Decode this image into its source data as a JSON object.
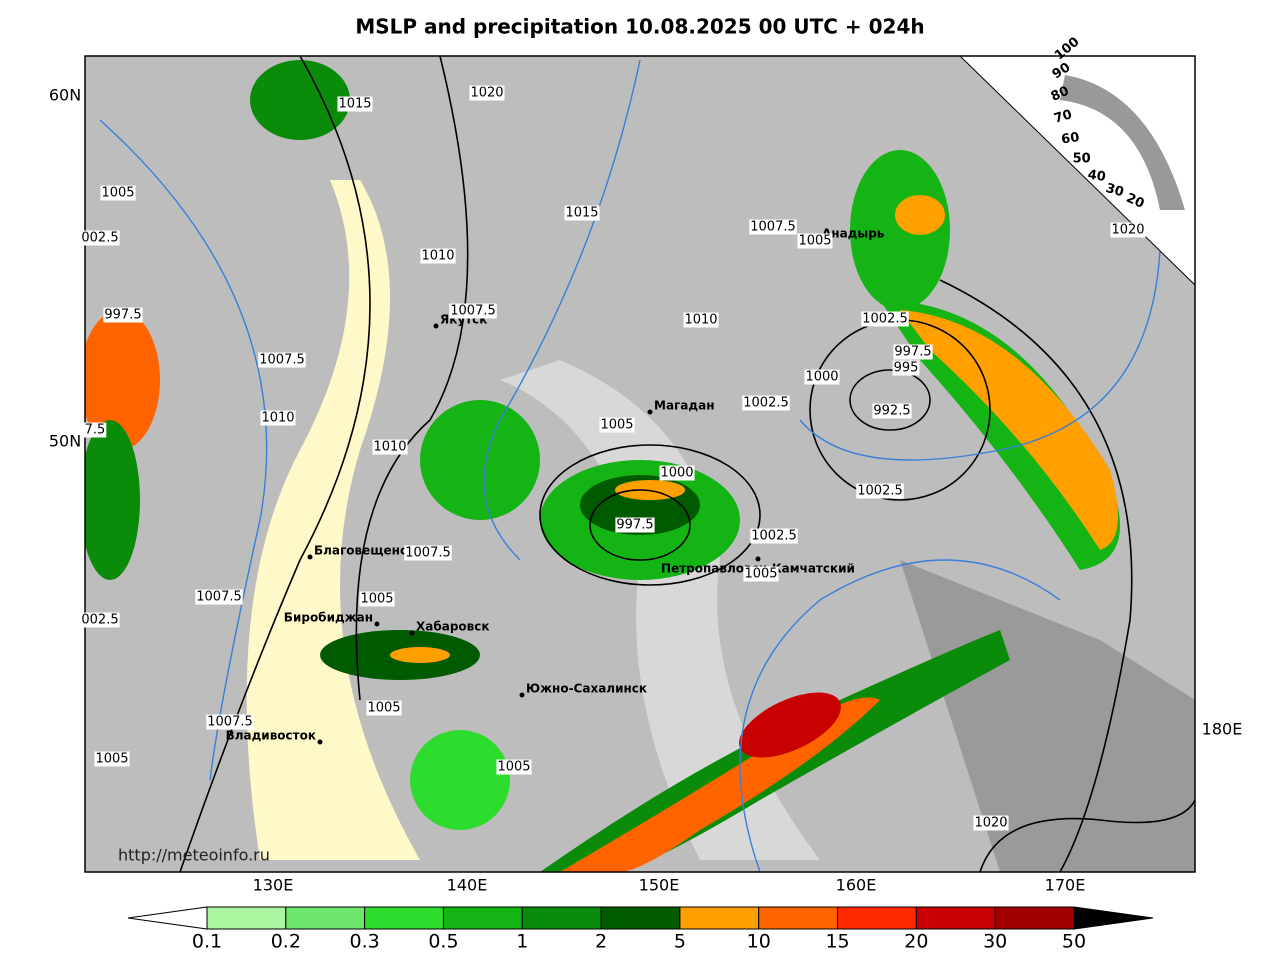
{
  "title": "MSLP and precipitation 10.08.2025 00 UTC + 024h",
  "lat_labels": [
    "60N",
    "50N"
  ],
  "lon_labels": [
    "130E",
    "140E",
    "150E",
    "160E",
    "170E",
    "180E"
  ],
  "cities": [
    "Якутск",
    "Магадан",
    "Благовещенск",
    "Биробиджан",
    "Хабаровск",
    "Южно-Сахалинск",
    "Владивосток",
    "Петропавловск-Камчатский",
    "Анадырь"
  ],
  "pressure_labels": [
    "1015",
    "1020",
    "1005",
    "002.5",
    "997.5",
    "1007.5",
    "1010",
    "1010",
    "1007.5",
    "1005",
    "1007.5",
    "1007.5",
    "1005",
    "1005",
    "1005",
    "1015",
    "1010",
    "1007.5",
    "1007.5",
    "1005",
    "1010",
    "1002.5",
    "997.5",
    "995",
    "992.5",
    "1000",
    "1002.5",
    "1005",
    "1000",
    "997.5",
    "1002.5",
    "1002.5",
    "1005",
    "1020",
    "1020",
    "7.5",
    "002.5"
  ],
  "cloud_scale": [
    "100",
    "90",
    "80",
    "70",
    "60",
    "50",
    "40",
    "30",
    "20"
  ],
  "source": "http://meteoinfo.ru",
  "colorbar": {
    "ticks": [
      0.1,
      0.2,
      0.3,
      0.5,
      1,
      2,
      5,
      10,
      15,
      20,
      30,
      50
    ],
    "colors": [
      "#aaf5a0",
      "#6ee66e",
      "#2edc2e",
      "#14b414",
      "#0a8c0a",
      "#005a00",
      "#ff9f00",
      "#ff6400",
      "#ff2800",
      "#c80000",
      "#a00000"
    ],
    "under": "#ffffff",
    "over": "#000000"
  }
}
